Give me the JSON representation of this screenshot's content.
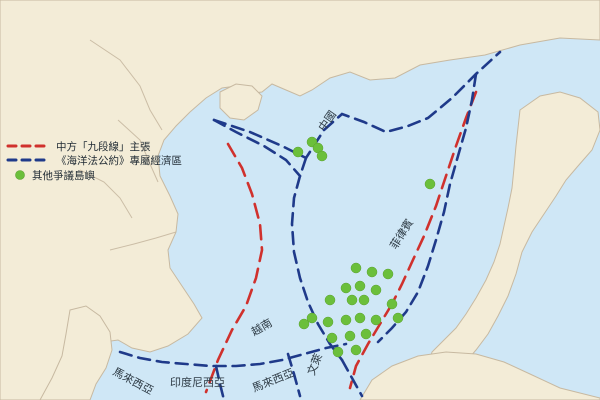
{
  "legend": {
    "items": [
      {
        "label": "中方「九段線」主張",
        "kind": "line",
        "color": "#d0312d",
        "dash": true
      },
      {
        "label": "《海洋法公約》專屬經濟區",
        "kind": "line",
        "color": "#1f3a8a",
        "dash": true
      },
      {
        "label": "其他爭議島嶼",
        "kind": "dot",
        "color": "#6bbf3b"
      }
    ]
  },
  "labels": {
    "china": "中國",
    "philippines": "菲律賓",
    "vietnam": "越南",
    "malaysia_left": "馬來西亞",
    "indonesia": "印度尼西亞",
    "malaysia_right": "馬來西亞",
    "brunei": "文萊"
  },
  "colors": {
    "sea": "#cfe7f6",
    "land": "#f3ecd7",
    "border": "#c7b9a1",
    "nine_dash": "#d0312d",
    "eez": "#1f3a8a",
    "islands": "#6bbf3b"
  }
}
